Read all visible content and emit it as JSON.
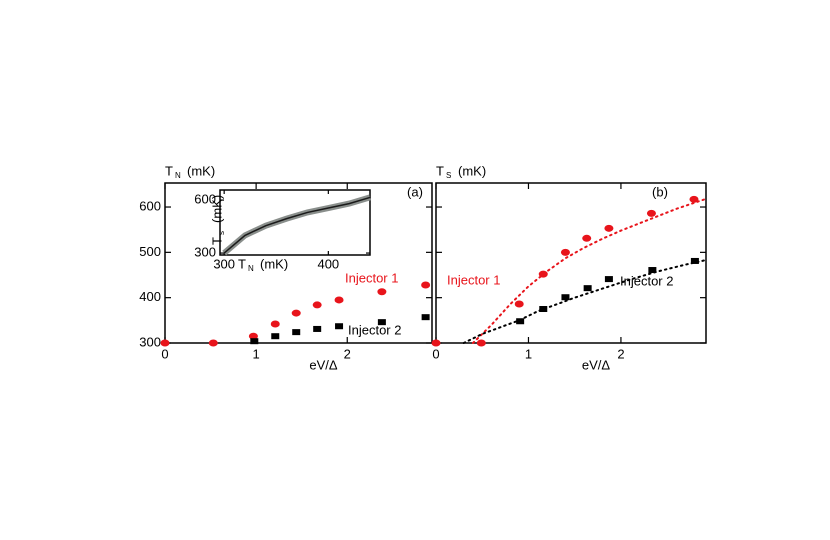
{
  "chart_data": [
    {
      "type": "scatter",
      "panel_label": "(a)",
      "ylabel": {
        "symbol": "T",
        "sub": "N",
        "unit": "(mK)"
      },
      "xlabel": "eV/Δ",
      "xlim": [
        0,
        2.93
      ],
      "xticks": [
        0,
        1,
        2
      ],
      "ylim": [
        300,
        653
      ],
      "yticks": [
        300,
        400,
        500,
        600
      ],
      "show_ytick_labels": true,
      "grid": false,
      "annotations": [
        {
          "text": "Injector 1",
          "color": "#e8141b"
        },
        {
          "text": "Injector 2",
          "color": "#000000"
        }
      ],
      "series": [
        {
          "name": "Injector 1",
          "color": "#e8141b",
          "marker": "circle",
          "x": [
            0,
            0.53,
            0.97,
            1.21,
            1.44,
            1.67,
            1.91,
            2.38,
            2.86
          ],
          "values": [
            300,
            300,
            315,
            342,
            366,
            384,
            395,
            413,
            428
          ]
        },
        {
          "name": "Injector 2",
          "color": "#000000",
          "marker": "square",
          "x": [
            0.98,
            1.21,
            1.44,
            1.67,
            1.91,
            2.38,
            2.86
          ],
          "values": [
            304,
            315,
            324,
            331,
            337,
            346,
            357
          ]
        }
      ]
    },
    {
      "type": "line",
      "ylabel": {
        "symbol": "T",
        "sub": "s",
        "unit": "(mK)"
      },
      "xlabel": {
        "symbol": "T",
        "sub": "N",
        "unit": "(mK)"
      },
      "xlim": [
        296,
        440
      ],
      "xticks": [
        300,
        400
      ],
      "ylim": [
        289,
        657
      ],
      "yticks": [
        300,
        600
      ],
      "show_ytick_labels": true,
      "grid": false,
      "annotations": [],
      "series": [
        {
          "color": "#1a1a1a",
          "band_color": "#8a8f8c",
          "x": [
            300,
            320,
            340,
            360,
            380,
            400,
            420,
            440
          ],
          "values": [
            300,
            400,
            455,
            495,
            530,
            555,
            580,
            615
          ]
        }
      ]
    },
    {
      "type": "scatter",
      "panel_label": "(b)",
      "ylabel": {
        "symbol": "T",
        "sub": "S",
        "unit": "(mK)"
      },
      "xlabel": "eV/Δ",
      "xlim": [
        0,
        2.92
      ],
      "xticks": [
        0,
        1,
        2
      ],
      "ylim": [
        300,
        653
      ],
      "yticks": [
        300,
        400,
        500,
        600
      ],
      "show_ytick_labels": false,
      "grid": false,
      "annotations": [
        {
          "text": "Injector 1",
          "color": "#e8141b"
        },
        {
          "text": "Injector 2",
          "color": "#000000"
        }
      ],
      "series": [
        {
          "color": "#e8141b",
          "marker": "dotted-line",
          "x": [
            0.4,
            0.6,
            0.8,
            1.0,
            1.2,
            1.4,
            1.6,
            1.8,
            2.0,
            2.3,
            2.6,
            2.92
          ],
          "values": [
            300,
            340,
            385,
            425,
            458,
            487,
            510,
            530,
            548,
            572,
            596,
            618
          ]
        },
        {
          "color": "#000000",
          "marker": "dotted-line",
          "x": [
            0.3,
            0.5,
            0.7,
            0.9,
            1.1,
            1.3,
            1.5,
            1.8,
            2.1,
            2.4,
            2.7,
            2.92
          ],
          "values": [
            300,
            320,
            335,
            350,
            370,
            385,
            400,
            420,
            440,
            458,
            473,
            483
          ]
        },
        {
          "name": "Injector 1",
          "color": "#e8141b",
          "marker": "circle",
          "x": [
            0,
            0.49,
            0.9,
            1.16,
            1.4,
            1.63,
            1.87,
            2.33,
            2.79
          ],
          "values": [
            300,
            300,
            386,
            452,
            500,
            531,
            553,
            586,
            617
          ]
        },
        {
          "name": "Injector 2",
          "color": "#000000",
          "marker": "square",
          "x": [
            0.91,
            1.16,
            1.4,
            1.64,
            1.87,
            2.34,
            2.8
          ],
          "values": [
            348,
            375,
            401,
            421,
            441,
            461,
            481
          ]
        }
      ]
    }
  ]
}
